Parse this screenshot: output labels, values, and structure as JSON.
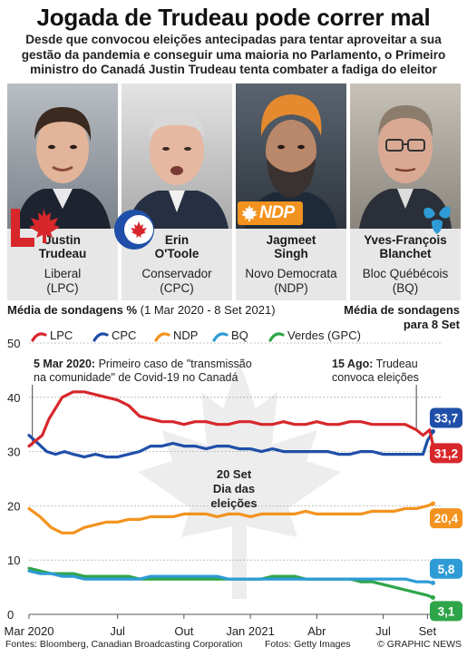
{
  "title": "Jogada de Trudeau pode correr mal",
  "subtitle": "Desde que convocou eleições antecipadas para tentar aproveitar a sua gestão da pandemia e conseguir uma maioria no Parlamento, o Primeiro ministro do Canadá Justin Trudeau tenta combater a fadiga do eleitor",
  "candidates": [
    {
      "name_line1": "Justin",
      "name_line2": "Trudeau",
      "party_line1": "Liberal",
      "party_line2": "(LPC)"
    },
    {
      "name_line1": "Erin",
      "name_line2": "O'Toole",
      "party_line1": "Conservador",
      "party_line2": "(CPC)"
    },
    {
      "name_line1": "Jagmeet",
      "name_line2": "Singh",
      "party_line1": "Novo Democrata",
      "party_line2": "(NDP)"
    },
    {
      "name_line1": "Yves-François",
      "name_line2": "Blanchet",
      "party_line1": "Bloc Québécois",
      "party_line2": "(BQ)"
    }
  ],
  "logo_text_ndp": "NDP",
  "chart_header": {
    "left_bold": "Média de sondagens %",
    "left_rest": " (1 Mar 2020 - 8 Set 2021)",
    "right_line1": "Média de sondagens",
    "right_line2": "para 8 Set"
  },
  "colors": {
    "LPC": "#d7272b",
    "CPC": "#1f4fa8",
    "NDP": "#f3931f",
    "BQ": "#2e9bd6",
    "GPC": "#2fa54a",
    "maple_watermark": "#ececec",
    "namebox": "#e7e7e7"
  },
  "chart_data": {
    "type": "line",
    "title": "Média de sondagens %",
    "subtitle": "(1 Mar 2020 - 8 Set 2021)",
    "x_tick_labels": [
      "Mar 2020",
      "Jul",
      "Out",
      "Jan 2021",
      "Abr",
      "Jul",
      "Set"
    ],
    "x_tick_months": [
      0,
      4,
      7,
      10,
      13,
      16,
      18
    ],
    "y_ticks": [
      0,
      10,
      20,
      30,
      40,
      50
    ],
    "ylim": [
      0,
      50
    ],
    "xlim_months": [
      0,
      18.6
    ],
    "grid": true,
    "legend": [
      "LPC",
      "CPC",
      "NDP",
      "BQ",
      "Verdes (GPC)"
    ],
    "legend_placement": "top-left",
    "series": [
      {
        "name": "LPC",
        "color": "#d7272b",
        "final_label": "31,2",
        "points": [
          [
            0,
            31
          ],
          [
            0.3,
            32
          ],
          [
            0.6,
            33
          ],
          [
            0.9,
            36
          ],
          [
            1.2,
            38
          ],
          [
            1.5,
            40
          ],
          [
            2,
            41
          ],
          [
            2.5,
            41
          ],
          [
            3,
            40.5
          ],
          [
            3.5,
            40
          ],
          [
            4,
            39.5
          ],
          [
            4.5,
            38.5
          ],
          [
            5,
            36.5
          ],
          [
            5.5,
            36
          ],
          [
            6,
            35.5
          ],
          [
            6.5,
            35.5
          ],
          [
            7,
            35
          ],
          [
            7.5,
            35.5
          ],
          [
            8,
            35.5
          ],
          [
            8.5,
            35
          ],
          [
            9,
            35
          ],
          [
            9.5,
            35.5
          ],
          [
            10,
            35.5
          ],
          [
            10.5,
            35
          ],
          [
            11,
            35
          ],
          [
            11.5,
            35.5
          ],
          [
            12,
            35
          ],
          [
            12.5,
            35
          ],
          [
            13,
            35.5
          ],
          [
            13.5,
            35
          ],
          [
            14,
            35
          ],
          [
            14.5,
            35.5
          ],
          [
            15,
            35.5
          ],
          [
            15.5,
            35
          ],
          [
            16,
            35
          ],
          [
            16.5,
            35
          ],
          [
            17,
            35
          ],
          [
            17.5,
            34
          ],
          [
            17.8,
            33
          ],
          [
            18.1,
            34
          ],
          [
            18.25,
            31.2
          ]
        ]
      },
      {
        "name": "CPC",
        "color": "#1f4fa8",
        "final_label": "33,7",
        "points": [
          [
            0,
            33
          ],
          [
            0.4,
            31.5
          ],
          [
            0.8,
            30
          ],
          [
            1.2,
            29.5
          ],
          [
            1.6,
            30
          ],
          [
            2,
            29.5
          ],
          [
            2.5,
            29
          ],
          [
            3,
            29.5
          ],
          [
            3.5,
            29
          ],
          [
            4,
            29
          ],
          [
            4.5,
            29.5
          ],
          [
            5,
            30
          ],
          [
            5.5,
            31
          ],
          [
            6,
            31
          ],
          [
            6.5,
            31.5
          ],
          [
            7,
            31
          ],
          [
            7.5,
            31
          ],
          [
            8,
            30.5
          ],
          [
            8.5,
            31
          ],
          [
            9,
            31
          ],
          [
            9.5,
            30.5
          ],
          [
            10,
            30.5
          ],
          [
            10.5,
            30
          ],
          [
            11,
            30.5
          ],
          [
            11.5,
            30
          ],
          [
            12,
            30
          ],
          [
            12.5,
            30
          ],
          [
            13,
            30
          ],
          [
            13.5,
            30
          ],
          [
            14,
            29.5
          ],
          [
            14.5,
            29.5
          ],
          [
            15,
            30
          ],
          [
            15.5,
            30
          ],
          [
            16,
            29.5
          ],
          [
            16.5,
            29.5
          ],
          [
            17,
            29.5
          ],
          [
            17.5,
            29.5
          ],
          [
            17.8,
            29.5
          ],
          [
            18,
            32
          ],
          [
            18.25,
            33.7
          ]
        ]
      },
      {
        "name": "NDP",
        "color": "#f3931f",
        "final_label": "20,4",
        "points": [
          [
            0,
            19.5
          ],
          [
            0.5,
            18
          ],
          [
            1,
            16
          ],
          [
            1.5,
            15
          ],
          [
            2,
            15
          ],
          [
            2.5,
            16
          ],
          [
            3,
            16.5
          ],
          [
            3.5,
            17
          ],
          [
            4,
            17
          ],
          [
            4.5,
            17.5
          ],
          [
            5,
            17.5
          ],
          [
            5.5,
            18
          ],
          [
            6,
            18
          ],
          [
            6.5,
            18
          ],
          [
            7,
            18.5
          ],
          [
            7.5,
            18.5
          ],
          [
            8,
            18.5
          ],
          [
            8.5,
            18
          ],
          [
            9,
            18.5
          ],
          [
            9.5,
            18.5
          ],
          [
            10,
            18
          ],
          [
            10.5,
            18.5
          ],
          [
            11,
            18.5
          ],
          [
            11.5,
            18.5
          ],
          [
            12,
            18.5
          ],
          [
            12.5,
            19
          ],
          [
            13,
            18.5
          ],
          [
            13.5,
            18.5
          ],
          [
            14,
            18.5
          ],
          [
            14.5,
            18.5
          ],
          [
            15,
            18.5
          ],
          [
            15.5,
            19
          ],
          [
            16,
            19
          ],
          [
            16.5,
            19
          ],
          [
            17,
            19.5
          ],
          [
            17.5,
            19.5
          ],
          [
            18,
            20
          ],
          [
            18.25,
            20.4
          ]
        ]
      },
      {
        "name": "BQ",
        "color": "#2e9bd6",
        "final_label": "5,8",
        "points": [
          [
            0,
            8
          ],
          [
            0.5,
            7.5
          ],
          [
            1,
            7.5
          ],
          [
            1.5,
            7
          ],
          [
            2,
            7
          ],
          [
            2.5,
            6.5
          ],
          [
            3,
            6.5
          ],
          [
            3.5,
            6.5
          ],
          [
            4,
            6.5
          ],
          [
            4.5,
            6.5
          ],
          [
            5,
            6.5
          ],
          [
            5.5,
            7
          ],
          [
            6,
            7
          ],
          [
            6.5,
            7
          ],
          [
            7,
            7
          ],
          [
            7.5,
            7
          ],
          [
            8,
            7
          ],
          [
            8.5,
            7
          ],
          [
            9,
            6.5
          ],
          [
            9.5,
            6.5
          ],
          [
            10,
            6.5
          ],
          [
            10.5,
            6.5
          ],
          [
            11,
            6.5
          ],
          [
            11.5,
            6.5
          ],
          [
            12,
            6.5
          ],
          [
            12.5,
            6.5
          ],
          [
            13,
            6.5
          ],
          [
            13.5,
            6.5
          ],
          [
            14,
            6.5
          ],
          [
            14.5,
            6.5
          ],
          [
            15,
            6.5
          ],
          [
            15.5,
            6.5
          ],
          [
            16,
            6.5
          ],
          [
            16.5,
            6.5
          ],
          [
            17,
            6.5
          ],
          [
            17.5,
            6
          ],
          [
            18,
            6
          ],
          [
            18.25,
            5.8
          ]
        ]
      },
      {
        "name": "Verdes (GPC)",
        "color": "#2fa54a",
        "final_label": "3,1",
        "points": [
          [
            0,
            8.5
          ],
          [
            0.5,
            8
          ],
          [
            1,
            7.5
          ],
          [
            1.5,
            7.5
          ],
          [
            2,
            7.5
          ],
          [
            2.5,
            7
          ],
          [
            3,
            7
          ],
          [
            3.5,
            7
          ],
          [
            4,
            7
          ],
          [
            4.5,
            7
          ],
          [
            5,
            6.5
          ],
          [
            5.5,
            6.5
          ],
          [
            6,
            6.5
          ],
          [
            6.5,
            6.5
          ],
          [
            7,
            6.5
          ],
          [
            7.5,
            6.5
          ],
          [
            8,
            6.5
          ],
          [
            8.5,
            6.5
          ],
          [
            9,
            6.5
          ],
          [
            9.5,
            6.5
          ],
          [
            10,
            6.5
          ],
          [
            10.5,
            6.5
          ],
          [
            11,
            7
          ],
          [
            11.5,
            7
          ],
          [
            12,
            7
          ],
          [
            12.5,
            6.5
          ],
          [
            13,
            6.5
          ],
          [
            13.5,
            6.5
          ],
          [
            14,
            6.5
          ],
          [
            14.5,
            6.5
          ],
          [
            15,
            6
          ],
          [
            15.5,
            6
          ],
          [
            16,
            5.5
          ],
          [
            16.5,
            5
          ],
          [
            17,
            4.5
          ],
          [
            17.5,
            4
          ],
          [
            18,
            3.5
          ],
          [
            18.25,
            3.1
          ]
        ]
      }
    ],
    "annotations": [
      {
        "bold": "5 Mar 2020:",
        "text": " Primeiro caso de \"transmissão",
        "line2": "na comunidade\" de Covid-19 no Canadá"
      },
      {
        "bold": "15 Ago:",
        "text": " Trudeau",
        "line2": "convoca eleições"
      },
      {
        "bold": "20 Set",
        "text": "",
        "line2": "Dia das",
        "line3": "eleições"
      }
    ]
  },
  "footer": {
    "sources": "Fontes: Bloomberg, Canadian Broadcasting Corporation",
    "photos": "Fotos: Getty Images",
    "credit": "© GRAPHIC NEWS"
  }
}
